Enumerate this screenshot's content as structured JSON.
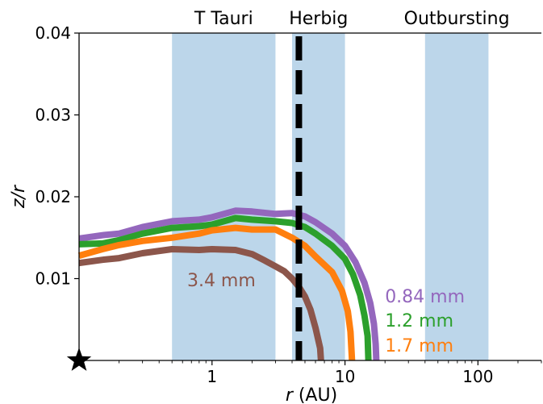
{
  "chart_data": {
    "type": "line",
    "title": "",
    "xlabel": "r (AU)",
    "xlabel_parts": {
      "var": "r",
      "unit": " (AU)"
    },
    "ylabel": "z/r",
    "xscale": "log",
    "xlim": [
      0.1,
      300
    ],
    "ylim": [
      0,
      0.04
    ],
    "grid": false,
    "x_ticks": [
      {
        "value": 1,
        "label": "1"
      },
      {
        "value": 10,
        "label": "10"
      },
      {
        "value": 100,
        "label": "100"
      }
    ],
    "y_ticks": [
      {
        "value": 0.01,
        "label": "0.01"
      },
      {
        "value": 0.02,
        "label": "0.02"
      },
      {
        "value": 0.03,
        "label": "0.03"
      },
      {
        "value": 0.04,
        "label": "0.04"
      }
    ],
    "regions": [
      {
        "label": "T Tauri",
        "x0": 0.5,
        "x1": 3.0,
        "color": "#bcd6ea"
      },
      {
        "label": "Herbig",
        "x0": 4.0,
        "x1": 10.0,
        "color": "#bcd6ea"
      },
      {
        "label": "Outbursting",
        "x0": 40,
        "x1": 120,
        "color": "#bcd6ea"
      }
    ],
    "vline": {
      "x": 4.5,
      "style": "dashed",
      "color": "#000000"
    },
    "star_marker": {
      "x": 0.1,
      "y": 0
    },
    "series": [
      {
        "name": "0.84 mm",
        "color": "#9467bd",
        "points": [
          [
            0.1,
            0.0149
          ],
          [
            0.15,
            0.0153
          ],
          [
            0.2,
            0.0155
          ],
          [
            0.3,
            0.0163
          ],
          [
            0.5,
            0.017
          ],
          [
            0.8,
            0.0172
          ],
          [
            1.0,
            0.0175
          ],
          [
            1.5,
            0.0183
          ],
          [
            2.0,
            0.0182
          ],
          [
            3.0,
            0.0179
          ],
          [
            4.0,
            0.018
          ],
          [
            5.0,
            0.0176
          ],
          [
            6.0,
            0.0169
          ],
          [
            8.0,
            0.0155
          ],
          [
            10.0,
            0.014
          ],
          [
            12.0,
            0.012
          ],
          [
            14.0,
            0.0095
          ],
          [
            15.5,
            0.007
          ],
          [
            16.5,
            0.0045
          ],
          [
            17.0,
            0.002
          ],
          [
            17.2,
            0.0
          ]
        ]
      },
      {
        "name": "1.2 mm",
        "color": "#2ca02c",
        "points": [
          [
            0.1,
            0.0142
          ],
          [
            0.15,
            0.0143
          ],
          [
            0.2,
            0.0147
          ],
          [
            0.3,
            0.0155
          ],
          [
            0.5,
            0.0162
          ],
          [
            0.8,
            0.0164
          ],
          [
            1.0,
            0.0166
          ],
          [
            1.5,
            0.0174
          ],
          [
            2.0,
            0.0172
          ],
          [
            3.0,
            0.017
          ],
          [
            4.0,
            0.0168
          ],
          [
            5.0,
            0.0163
          ],
          [
            6.0,
            0.0155
          ],
          [
            8.0,
            0.014
          ],
          [
            10.0,
            0.0124
          ],
          [
            11.5,
            0.0105
          ],
          [
            13.0,
            0.008
          ],
          [
            14.0,
            0.0055
          ],
          [
            14.8,
            0.003
          ],
          [
            15.0,
            0.0
          ]
        ]
      },
      {
        "name": "1.7 mm",
        "color": "#ff7f0e",
        "points": [
          [
            0.1,
            0.0128
          ],
          [
            0.15,
            0.0136
          ],
          [
            0.2,
            0.0141
          ],
          [
            0.3,
            0.0146
          ],
          [
            0.5,
            0.015
          ],
          [
            0.8,
            0.0155
          ],
          [
            1.0,
            0.0159
          ],
          [
            1.5,
            0.0162
          ],
          [
            2.0,
            0.016
          ],
          [
            3.0,
            0.016
          ],
          [
            4.0,
            0.015
          ],
          [
            5.0,
            0.014
          ],
          [
            6.0,
            0.0127
          ],
          [
            8.0,
            0.0108
          ],
          [
            9.5,
            0.0085
          ],
          [
            10.5,
            0.006
          ],
          [
            11.0,
            0.0035
          ],
          [
            11.3,
            0.0
          ]
        ]
      },
      {
        "name": "3.4 mm",
        "color": "#8c564b",
        "points": [
          [
            0.1,
            0.0119
          ],
          [
            0.15,
            0.0123
          ],
          [
            0.2,
            0.0125
          ],
          [
            0.3,
            0.0131
          ],
          [
            0.5,
            0.0136
          ],
          [
            0.8,
            0.0135
          ],
          [
            1.0,
            0.0136
          ],
          [
            1.5,
            0.0135
          ],
          [
            2.0,
            0.013
          ],
          [
            2.5,
            0.0122
          ],
          [
            3.0,
            0.0115
          ],
          [
            3.5,
            0.0109
          ],
          [
            4.0,
            0.01
          ],
          [
            4.5,
            0.009
          ],
          [
            5.0,
            0.0078
          ],
          [
            5.5,
            0.0062
          ],
          [
            6.0,
            0.004
          ],
          [
            6.5,
            0.0015
          ],
          [
            6.6,
            0.0
          ]
        ]
      }
    ]
  }
}
